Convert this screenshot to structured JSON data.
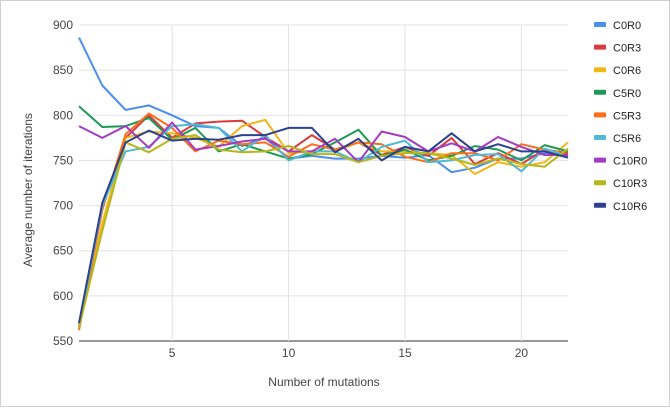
{
  "chart_data": {
    "type": "line",
    "title": "",
    "xlabel": "Number of mutations",
    "ylabel": "Average number of iterations",
    "xlim": [
      1,
      22
    ],
    "ylim": [
      550,
      900
    ],
    "x_ticks": [
      5,
      10,
      15,
      20
    ],
    "y_ticks": [
      550,
      600,
      650,
      700,
      750,
      800,
      850,
      900
    ],
    "grid": true,
    "legend_position": "right",
    "x": [
      1,
      2,
      3,
      4,
      5,
      6,
      7,
      8,
      9,
      10,
      11,
      12,
      13,
      14,
      15,
      16,
      17,
      18,
      19,
      20,
      21,
      22
    ],
    "series": [
      {
        "name": "C0R0",
        "color": "#4a8ef0",
        "values": [
          886,
          833,
          806,
          811,
          800,
          788,
          786,
          766,
          775,
          752,
          755,
          752,
          752,
          755,
          753,
          756,
          737,
          742,
          752,
          752,
          758,
          755
        ]
      },
      {
        "name": "C0R3",
        "color": "#d83c3c",
        "values": [
          568,
          697,
          775,
          800,
          775,
          791,
          793,
          794,
          776,
          760,
          778,
          762,
          770,
          756,
          765,
          755,
          775,
          746,
          758,
          746,
          762,
          758
        ]
      },
      {
        "name": "C0R6",
        "color": "#f2b51a",
        "values": [
          565,
          680,
          775,
          782,
          780,
          775,
          765,
          788,
          795,
          758,
          760,
          760,
          770,
          760,
          760,
          758,
          756,
          735,
          748,
          743,
          748,
          770
        ]
      },
      {
        "name": "C5R0",
        "color": "#1e9a55",
        "values": [
          810,
          787,
          788,
          797,
          773,
          786,
          760,
          768,
          760,
          752,
          757,
          770,
          784,
          755,
          762,
          750,
          755,
          766,
          762,
          750,
          767,
          760
        ]
      },
      {
        "name": "C5R3",
        "color": "#fa6e1c",
        "values": [
          562,
          695,
          779,
          802,
          786,
          760,
          772,
          768,
          770,
          754,
          768,
          762,
          770,
          768,
          754,
          748,
          758,
          758,
          750,
          768,
          762,
          756
        ]
      },
      {
        "name": "C5R6",
        "color": "#4fbad3",
        "values": [
          566,
          700,
          760,
          765,
          788,
          790,
          786,
          760,
          778,
          750,
          760,
          760,
          748,
          765,
          772,
          748,
          750,
          756,
          757,
          738,
          763,
          755
        ]
      },
      {
        "name": "C10R0",
        "color": "#a33cc2",
        "values": [
          788,
          775,
          788,
          764,
          792,
          762,
          766,
          771,
          774,
          760,
          760,
          774,
          748,
          782,
          776,
          760,
          769,
          760,
          776,
          765,
          756,
          756
        ]
      },
      {
        "name": "C10R3",
        "color": "#b6b71c",
        "values": [
          565,
          672,
          770,
          759,
          774,
          778,
          762,
          759,
          760,
          766,
          757,
          757,
          748,
          755,
          758,
          758,
          752,
          745,
          752,
          746,
          743,
          763
        ]
      },
      {
        "name": "C10R6",
        "color": "#2c418f",
        "values": [
          570,
          703,
          770,
          783,
          772,
          774,
          773,
          778,
          778,
          786,
          786,
          759,
          774,
          750,
          765,
          760,
          780,
          760,
          768,
          760,
          760,
          753
        ]
      }
    ]
  }
}
